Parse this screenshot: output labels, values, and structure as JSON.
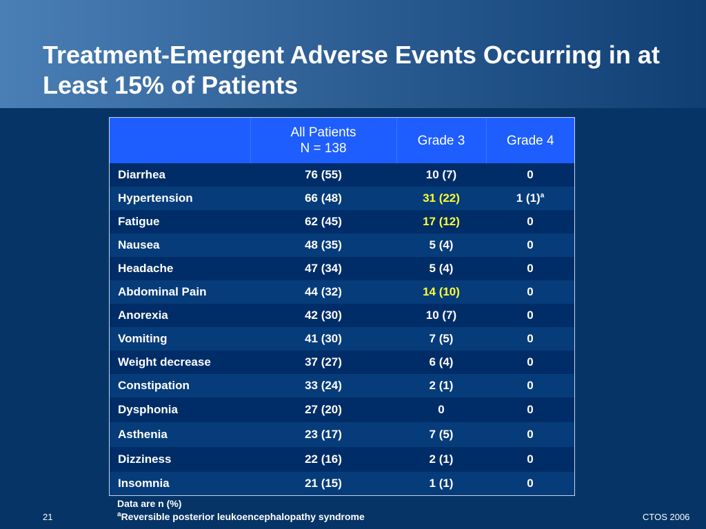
{
  "title": "Treatment-Emergent Adverse Events Occurring in at Least 15% of Patients",
  "table": {
    "headers": {
      "col0": "",
      "col1_line1": "All Patients",
      "col1_line2": "N = 138",
      "col2": "Grade 3",
      "col3": "Grade 4"
    },
    "rows": [
      {
        "event": "Diarrhea",
        "all": "76 (55)",
        "grade3": "10 (7)",
        "grade4": "0"
      },
      {
        "event": "Hypertension",
        "all": "66 (48)",
        "grade3": "31 (22)",
        "grade4": "1 (1)",
        "grade4_sup": "a"
      },
      {
        "event": "Fatigue",
        "all": "62 (45)",
        "grade3": "17 (12)",
        "grade4": "0"
      },
      {
        "event": "Nausea",
        "all": "48 (35)",
        "grade3": "5 (4)",
        "grade4": "0"
      },
      {
        "event": "Headache",
        "all": "47 (34)",
        "grade3": "5 (4)",
        "grade4": "0"
      },
      {
        "event": "Abdominal Pain",
        "all": "44 (32)",
        "grade3": "14 (10)",
        "grade4": "0"
      },
      {
        "event": "Anorexia",
        "all": "42 (30)",
        "grade3": "10 (7)",
        "grade4": "0"
      },
      {
        "event": "Vomiting",
        "all": "41 (30)",
        "grade3": "7 (5)",
        "grade4": "0"
      },
      {
        "event": "Weight decrease",
        "all": "37 (27)",
        "grade3": "6 (4)",
        "grade4": "0"
      },
      {
        "event": "Constipation",
        "all": "33 (24)",
        "grade3": "2 (1)",
        "grade4": "0"
      },
      {
        "event": "Dysphonia",
        "all": "27 (20)",
        "grade3": "0",
        "grade4": "0"
      },
      {
        "event": "Asthenia",
        "all": "23 (17)",
        "grade3": "7 (5)",
        "grade4": "0"
      },
      {
        "event": "Dizziness",
        "all": "22 (16)",
        "grade3": "2 (1)",
        "grade4": "0"
      },
      {
        "event": "Insomnia",
        "all": "21 (15)",
        "grade3": "1 (1)",
        "grade4": "0"
      }
    ]
  },
  "footnotes": {
    "line1": "Data are n (%)",
    "line2_sup": "a",
    "line2": "Reversible posterior leukoencephalopathy syndrome"
  },
  "slide_number": "21",
  "conference": "CTOS 2006",
  "colors": {
    "background": "#063466",
    "header_fill": "#1e5eff",
    "highlight_text": "#ffff33"
  }
}
